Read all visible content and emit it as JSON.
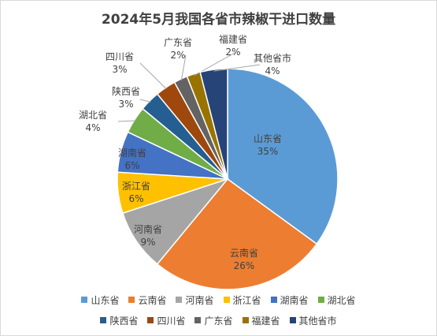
{
  "chart_data": {
    "type": "pie",
    "title": "2024年5月我国各省市辣椒干进口数量",
    "categories": [
      "山东省",
      "云南省",
      "河南省",
      "浙江省",
      "湖南省",
      "湖北省",
      "陕西省",
      "四川省",
      "广东省",
      "福建省",
      "其他省市"
    ],
    "values": [
      35,
      26,
      9,
      6,
      6,
      4,
      3,
      3,
      2,
      2,
      4
    ],
    "value_labels": [
      "35%",
      "26%",
      "9%",
      "6%",
      "6%",
      "4%",
      "3%",
      "3%",
      "2%",
      "2%",
      "4%"
    ],
    "colors": [
      "#5b9bd5",
      "#ed7d31",
      "#a5a5a5",
      "#ffc000",
      "#4472c4",
      "#70ad47",
      "#255e91",
      "#9e480e",
      "#636363",
      "#997300",
      "#264478"
    ],
    "legend_position": "bottom"
  }
}
